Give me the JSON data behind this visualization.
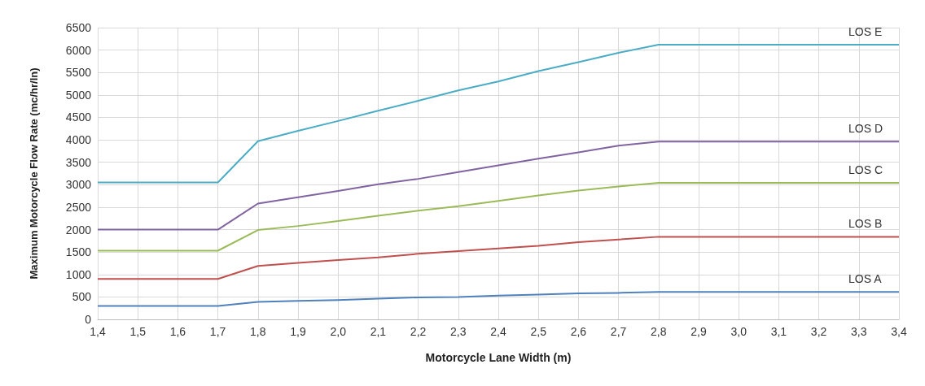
{
  "chart_data": {
    "type": "line",
    "xlabel": "Motorcycle Lane Width (m)",
    "ylabel": "Maximum Motorcycle Flow Rate (mc/hr/ln)",
    "categories": [
      "1,4",
      "1,5",
      "1,6",
      "1,7",
      "1,8",
      "1,9",
      "2,0",
      "2,1",
      "2,2",
      "2,3",
      "2,4",
      "2,5",
      "2,6",
      "2,7",
      "2,8",
      "2,9",
      "3,0",
      "3,1",
      "3,2",
      "3,3",
      "3,4"
    ],
    "ylim": [
      0,
      6500
    ],
    "yticks": [
      0,
      500,
      1000,
      1500,
      2000,
      2500,
      3000,
      3500,
      4000,
      4500,
      5000,
      5500,
      6000,
      6500
    ],
    "grid": true,
    "marker": "none",
    "line_style": "solid",
    "series": [
      {
        "name": "LOS E",
        "color": "#4bacc6",
        "values": [
          3050,
          3050,
          3050,
          3050,
          3970,
          4200,
          4420,
          4650,
          4870,
          5100,
          5300,
          5530,
          5730,
          5940,
          6120,
          6120,
          6120,
          6120,
          6120,
          6120,
          6120
        ]
      },
      {
        "name": "LOS D",
        "color": "#8064a2",
        "values": [
          2000,
          2000,
          2000,
          2000,
          2580,
          2720,
          2860,
          3010,
          3130,
          3280,
          3430,
          3580,
          3720,
          3870,
          3960,
          3960,
          3960,
          3960,
          3960,
          3960,
          3960
        ]
      },
      {
        "name": "LOS C",
        "color": "#9bbb59",
        "values": [
          1530,
          1530,
          1530,
          1530,
          1990,
          2080,
          2190,
          2310,
          2420,
          2520,
          2640,
          2760,
          2870,
          2960,
          3040,
          3040,
          3040,
          3040,
          3040,
          3040,
          3040
        ]
      },
      {
        "name": "LOS B",
        "color": "#c0504d",
        "values": [
          900,
          900,
          900,
          900,
          1190,
          1260,
          1320,
          1380,
          1460,
          1520,
          1580,
          1640,
          1720,
          1780,
          1840,
          1840,
          1840,
          1840,
          1840,
          1840,
          1840
        ]
      },
      {
        "name": "LOS A",
        "color": "#4f81bd",
        "values": [
          300,
          300,
          300,
          300,
          390,
          410,
          430,
          460,
          490,
          500,
          530,
          550,
          580,
          590,
          610,
          610,
          610,
          610,
          610,
          610,
          610
        ]
      }
    ]
  }
}
